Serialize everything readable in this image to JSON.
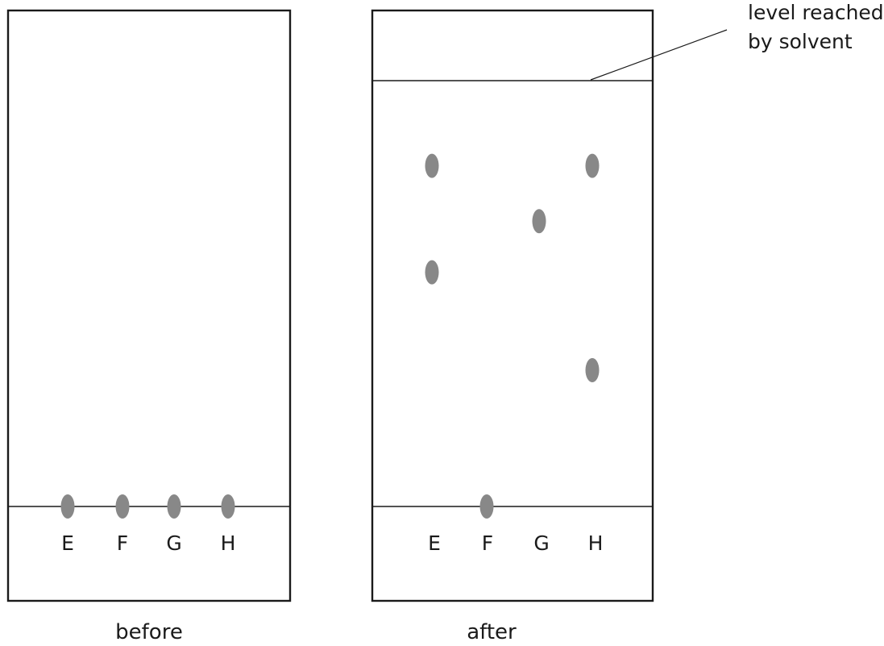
{
  "lanes": [
    "E",
    "F",
    "G",
    "H"
  ],
  "before": {
    "caption": "before",
    "spots": [
      {
        "lane": "E",
        "position": "baseline"
      },
      {
        "lane": "F",
        "position": "baseline"
      },
      {
        "lane": "G",
        "position": "baseline"
      },
      {
        "lane": "H",
        "position": "baseline"
      }
    ]
  },
  "after": {
    "caption": "after",
    "solvent_front_label_line1": "level reached",
    "solvent_front_label_line2": "by solvent",
    "spots": [
      {
        "lane": "E",
        "rf": 0.8
      },
      {
        "lane": "E",
        "rf": 0.55
      },
      {
        "lane": "F",
        "rf": 0.0
      },
      {
        "lane": "G",
        "rf": 0.67
      },
      {
        "lane": "H",
        "rf": 0.8
      },
      {
        "lane": "H",
        "rf": 0.32
      }
    ]
  },
  "colors": {
    "spot": "#888888",
    "line": "#1a1a1a"
  }
}
